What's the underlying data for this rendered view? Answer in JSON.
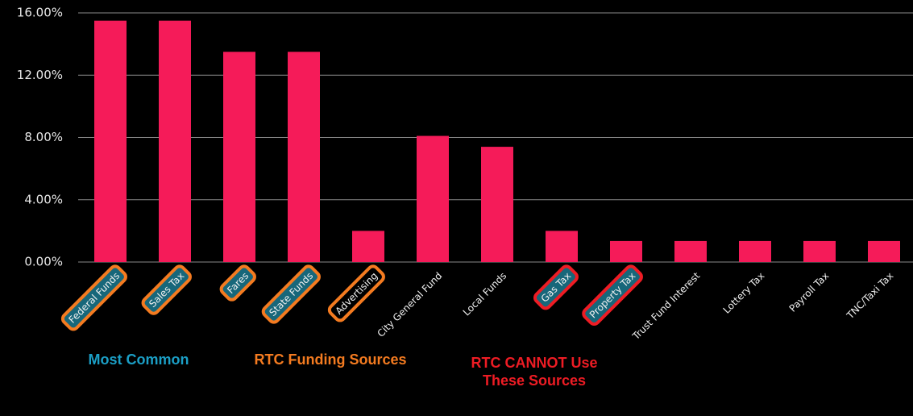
{
  "chart_data": {
    "type": "bar",
    "categories": [
      "Federal Funds",
      "Sales Tax",
      "Fares",
      "State Funds",
      "Advertising",
      "City General Fund",
      "Local Funds",
      "Gas Tax",
      "Property Tax",
      "Trust Fund Interest",
      "Lottery Tax",
      "Payroll Tax",
      "TNC/Taxi Tax"
    ],
    "values": [
      15.5,
      15.5,
      13.5,
      13.5,
      2.0,
      8.1,
      7.4,
      2.0,
      1.35,
      1.35,
      1.35,
      1.35,
      1.35
    ],
    "color": "#f51b59",
    "ylim": [
      0,
      16
    ],
    "yticks": [
      {
        "value": 0,
        "label": "0.00%"
      },
      {
        "value": 4,
        "label": "4.00%"
      },
      {
        "value": 8,
        "label": "8.00%"
      },
      {
        "value": 12,
        "label": "12.00%"
      },
      {
        "value": 16,
        "label": "16.00%"
      }
    ],
    "grid": true,
    "label_boxes": [
      {
        "fill": "#17677a",
        "border": "#f47b20"
      },
      {
        "fill": "#17677a",
        "border": "#f47b20"
      },
      {
        "fill": "#17677a",
        "border": "#f47b20"
      },
      {
        "fill": "#17677a",
        "border": "#f47b20"
      },
      {
        "fill": "#000000",
        "border": "#f47b20"
      },
      null,
      null,
      {
        "fill": "#17677a",
        "border": "#ee1c24"
      },
      {
        "fill": "#17677a",
        "border": "#ee1c24"
      },
      null,
      null,
      null,
      null
    ],
    "annotations": [
      {
        "lines": [
          "Most Common"
        ],
        "color": "#1b9fc6"
      },
      {
        "lines": [
          "RTC Funding Sources"
        ],
        "color": "#f47b20"
      },
      {
        "lines": [
          "RTC CANNOT Use",
          "These Sources"
        ],
        "color": "#ee1c24"
      }
    ]
  }
}
